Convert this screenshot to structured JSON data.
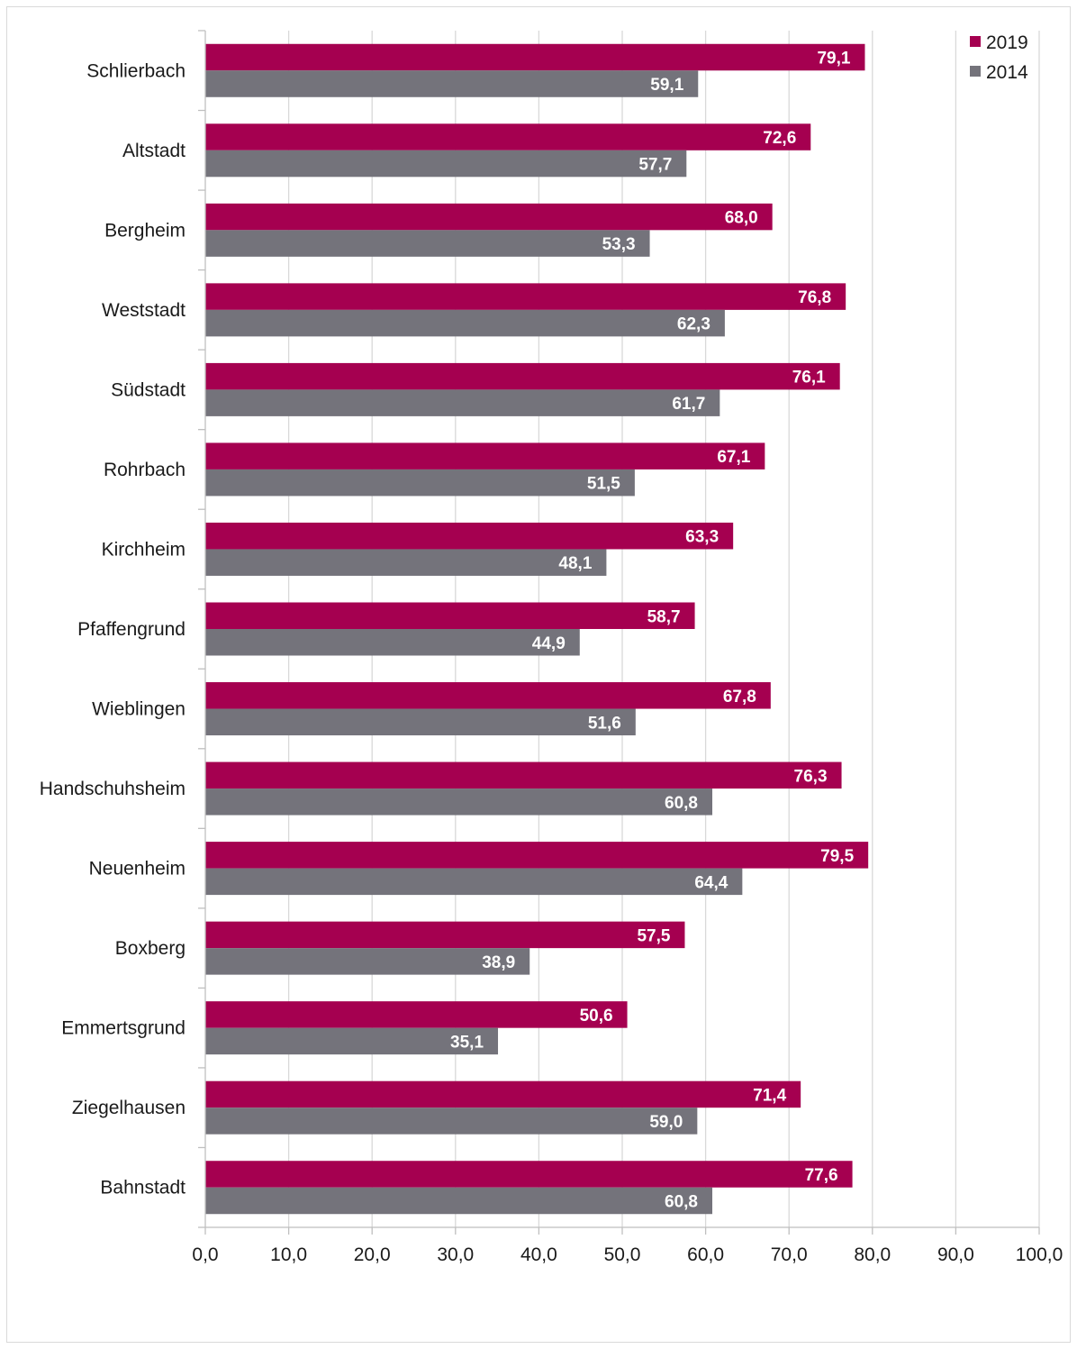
{
  "chart_data": {
    "type": "bar",
    "orientation": "horizontal",
    "title": "",
    "xlabel": "",
    "ylabel": "",
    "xlim": [
      0,
      100
    ],
    "x_ticks": [
      "0,0",
      "10,0",
      "20,0",
      "30,0",
      "40,0",
      "50,0",
      "60,0",
      "70,0",
      "80,0",
      "90,0",
      "100,0"
    ],
    "grid": "vertical",
    "legend_position": "top-right",
    "categories": [
      "Schlierbach",
      "Altstadt",
      "Bergheim",
      "Weststadt",
      "Südstadt",
      "Rohrbach",
      "Kirchheim",
      "Pfaffengrund",
      "Wieblingen",
      "Handschuhsheim",
      "Neuenheim",
      "Boxberg",
      "Emmertsgrund",
      "Ziegelhausen",
      "Bahnstadt"
    ],
    "series": [
      {
        "name": "2019",
        "color": "#a50050",
        "values": [
          79.1,
          72.6,
          68.0,
          76.8,
          76.1,
          67.1,
          63.3,
          58.7,
          67.8,
          76.3,
          79.5,
          57.5,
          50.6,
          71.4,
          77.6
        ],
        "labels": [
          "79,1",
          "72,6",
          "68,0",
          "76,8",
          "76,1",
          "67,1",
          "63,3",
          "58,7",
          "67,8",
          "76,3",
          "79,5",
          "57,5",
          "50,6",
          "71,4",
          "77,6"
        ]
      },
      {
        "name": "2014",
        "color": "#74737b",
        "values": [
          59.1,
          57.7,
          53.3,
          62.3,
          61.7,
          51.5,
          48.1,
          44.9,
          51.6,
          60.8,
          64.4,
          38.9,
          35.1,
          59.0,
          60.8
        ],
        "labels": [
          "59,1",
          "57,7",
          "53,3",
          "62,3",
          "61,7",
          "51,5",
          "48,1",
          "44,9",
          "51,6",
          "60,8",
          "64,4",
          "38,9",
          "35,1",
          "59,0",
          "60,8"
        ]
      }
    ]
  }
}
